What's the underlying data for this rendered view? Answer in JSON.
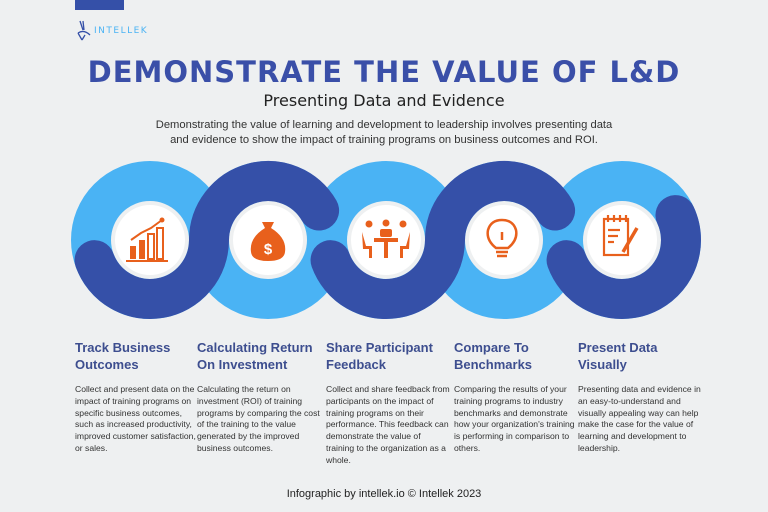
{
  "brand": {
    "name": "INTELLEK"
  },
  "header": {
    "title": "DEMONSTRATE THE VALUE OF L&D",
    "subtitle": "Presenting Data and Evidence",
    "intro": "Demonstrating the value of learning and development to leadership involves presenting data and evidence to show the impact of training programs on business outcomes and ROI."
  },
  "colors": {
    "dark_blue": "#3550a8",
    "light_blue": "#4ab3f4",
    "icon_orange": "#e8601c",
    "background": "#eef0f1"
  },
  "steps": [
    {
      "icon": "bar-chart-growth-icon",
      "title": "Track Business Outcomes",
      "text": "Collect and present data on the impact of training programs on specific business outcomes, such as increased productivity, improved customer satisfaction, or sales."
    },
    {
      "icon": "money-bag-icon",
      "title": "Calculating Return On Investment",
      "text": "Calculating the return on investment (ROI) of training programs by comparing the cost of the training to the value generated by the improved business outcomes."
    },
    {
      "icon": "meeting-table-icon",
      "title": "Share Participant Feedback",
      "text": "Collect and share feedback from participants on the impact of training programs on their performance. This feedback can demonstrate the value of training to the organization as a whole."
    },
    {
      "icon": "lightbulb-icon",
      "title": "Compare To Benchmarks",
      "text": "Comparing the results of your training programs to industry benchmarks and demonstrate how your organization's training is performing in comparison to others."
    },
    {
      "icon": "clipboard-pencil-icon",
      "title": "Present Data Visually",
      "text": "Presenting data and evidence in an easy-to-understand and visually appealing way can help make the case for the value of learning and development to leadership."
    }
  ],
  "footer": "Infographic by intellek.io © Intellek 2023"
}
